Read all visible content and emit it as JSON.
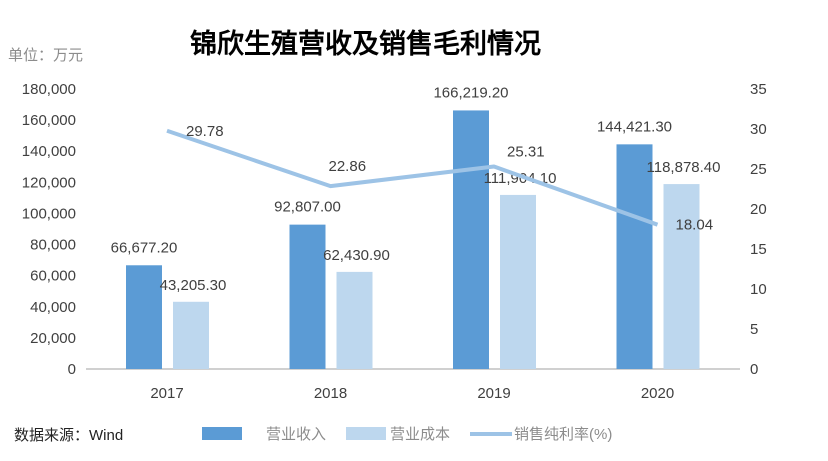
{
  "chart_data": {
    "type": "bar",
    "title": "锦欣生殖营收及销售毛利情况",
    "unit_label": "单位：万元",
    "source": "数据来源：Wind",
    "categories": [
      "2017",
      "2018",
      "2019",
      "2020"
    ],
    "series": [
      {
        "name": "营业收入",
        "type": "bar",
        "axis": "left",
        "color": "#5b9bd5",
        "values": [
          66677.2,
          92807.0,
          166219.2,
          144421.3
        ],
        "labels": [
          "66,677.20",
          "92,807.00",
          "166,219.20",
          "144,421.30"
        ]
      },
      {
        "name": "营业成本",
        "type": "bar",
        "axis": "left",
        "color": "#bdd7ee",
        "values": [
          43205.3,
          62430.9,
          111904.1,
          118878.4
        ],
        "labels": [
          "43,205.30",
          "62,430.90",
          "111,904.10",
          "118,878.40"
        ]
      },
      {
        "name": "销售纯利率(%)",
        "type": "line",
        "axis": "right",
        "color": "#9dc3e6",
        "values": [
          29.78,
          22.86,
          25.31,
          18.04
        ],
        "labels": [
          "29.78",
          "22.86",
          "25.31",
          "18.04"
        ]
      }
    ],
    "y_left": {
      "range": [
        0,
        180000
      ],
      "ticks": [
        "0",
        "20,000",
        "40,000",
        "60,000",
        "80,000",
        "100,000",
        "120,000",
        "140,000",
        "160,000",
        "180,000"
      ]
    },
    "y_right": {
      "range": [
        0,
        35
      ],
      "ticks": [
        "0",
        "5",
        "10",
        "15",
        "20",
        "25",
        "30",
        "35"
      ]
    },
    "grid": false,
    "legend": "bottom"
  }
}
